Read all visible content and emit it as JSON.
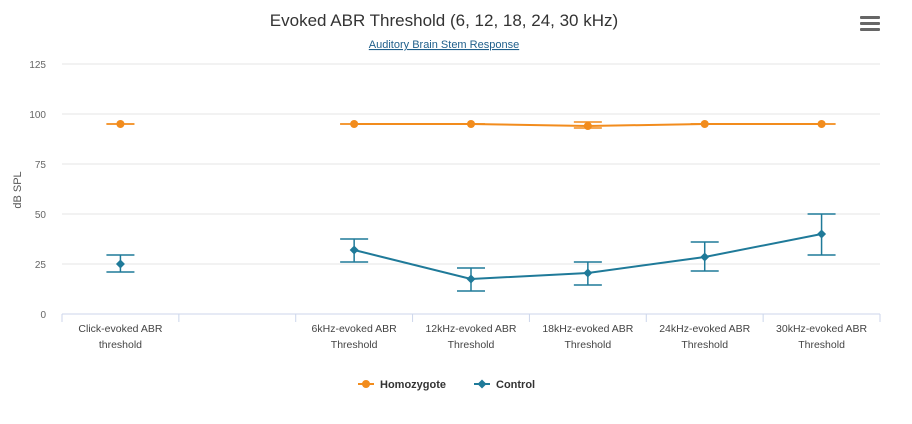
{
  "chart_data": {
    "type": "line",
    "title": "Evoked ABR Threshold (6, 12, 18, 24, 30 kHz)",
    "subtitle": "Auditory Brain Stem Response",
    "xlabel": "",
    "ylabel": "dB SPL",
    "ylim": [
      0,
      125
    ],
    "yticks": [
      0,
      25,
      50,
      75,
      100,
      125
    ],
    "grid": true,
    "legend_position": "bottom-center",
    "categories": [
      [
        "Click-evoked ABR",
        "threshold"
      ],
      [],
      [
        "6kHz-evoked ABR",
        "Threshold"
      ],
      [
        "12kHz-evoked ABR",
        "Threshold"
      ],
      [
        "18kHz-evoked ABR",
        "Threshold"
      ],
      [
        "24kHz-evoked ABR",
        "Threshold"
      ],
      [
        "30kHz-evoked ABR",
        "Threshold"
      ]
    ],
    "series": [
      {
        "name": "Homozygote",
        "color": "#f28c1d",
        "marker": "circle",
        "values": [
          95,
          null,
          95,
          95,
          94,
          95,
          95
        ],
        "error_low": [
          95,
          null,
          95,
          95,
          93,
          95,
          95
        ],
        "error_high": [
          95,
          null,
          95,
          95,
          96,
          95,
          95
        ],
        "connect_from": 2
      },
      {
        "name": "Control",
        "color": "#1f7a99",
        "marker": "diamond",
        "values": [
          25,
          null,
          32,
          17.5,
          20.5,
          28.5,
          40
        ],
        "error_low": [
          21,
          null,
          26,
          11.5,
          14.5,
          21.5,
          29.5
        ],
        "error_high": [
          29.5,
          null,
          37.5,
          23,
          26,
          36,
          50
        ],
        "connect_from": 2
      }
    ]
  },
  "menu": {
    "icon": "hamburger-menu-icon"
  }
}
